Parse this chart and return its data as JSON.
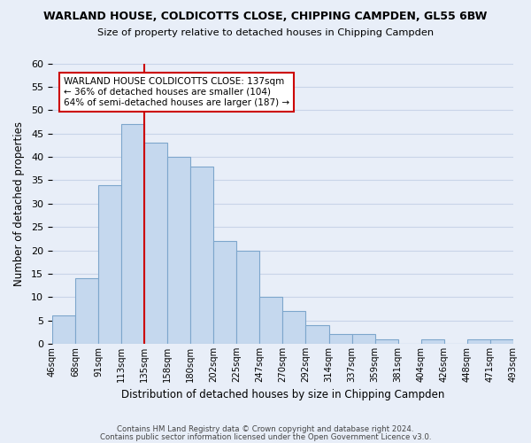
{
  "title": "WARLAND HOUSE, COLDICOTTS CLOSE, CHIPPING CAMPDEN, GL55 6BW",
  "subtitle": "Size of property relative to detached houses in Chipping Campden",
  "xlabel": "Distribution of detached houses by size in Chipping Campden",
  "ylabel": "Number of detached properties",
  "bar_color": "#c5d8ee",
  "bar_edge_color": "#7da6cc",
  "bin_edges": [
    "46sqm",
    "68sqm",
    "91sqm",
    "113sqm",
    "135sqm",
    "158sqm",
    "180sqm",
    "202sqm",
    "225sqm",
    "247sqm",
    "270sqm",
    "292sqm",
    "314sqm",
    "337sqm",
    "359sqm",
    "381sqm",
    "404sqm",
    "426sqm",
    "448sqm",
    "471sqm",
    "493sqm"
  ],
  "bar_heights": [
    6,
    14,
    34,
    47,
    43,
    40,
    38,
    22,
    20,
    10,
    7,
    4,
    2,
    2,
    1,
    0,
    1,
    0,
    1,
    1
  ],
  "ylim": [
    0,
    60
  ],
  "yticks": [
    0,
    5,
    10,
    15,
    20,
    25,
    30,
    35,
    40,
    45,
    50,
    55,
    60
  ],
  "vline_position": 4.0,
  "vline_color": "#cc0000",
  "annotation_title": "WARLAND HOUSE COLDICOTTS CLOSE: 137sqm",
  "annotation_line1": "← 36% of detached houses are smaller (104)",
  "annotation_line2": "64% of semi-detached houses are larger (187) →",
  "annotation_box_color": "#ffffff",
  "annotation_box_edge": "#cc0000",
  "grid_color": "#c8d4e8",
  "background_color": "#e8eef8",
  "footer1": "Contains HM Land Registry data © Crown copyright and database right 2024.",
  "footer2": "Contains public sector information licensed under the Open Government Licence v3.0."
}
